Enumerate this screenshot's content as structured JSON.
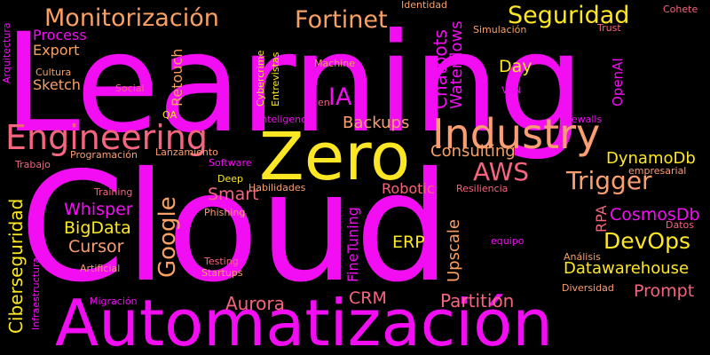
{
  "colors": {
    "background": "#000000",
    "magenta": "#f20df2",
    "pink": "#ff3fd5",
    "coral": "#f5657f",
    "orange": "#f9a062",
    "peach": "#fb9f72",
    "yellow": "#fde724"
  },
  "words": {
    "learning": "Learning",
    "cloud": "Cloud",
    "automatizacion": "Automatización",
    "zero": "Zero",
    "industry": "Industry",
    "engineering": "Engineering",
    "monitorizacion": "Monitorización",
    "fortinet": "Fortinet",
    "seguridad": "Seguridad",
    "aws": "AWS",
    "trigger": "Trigger",
    "devops": "DevOps",
    "datawarehouse": "Datawarehouse",
    "prompt": "Prompt",
    "partition": "Partition",
    "aurora": "Aurora",
    "crm": "CRM",
    "erp": "ERP",
    "google": "Google",
    "cursor": "Cursor",
    "bigdata": "BigData",
    "whisper": "Whisper",
    "smart": "Smart",
    "ia": "IA",
    "backups": "Backups",
    "consulting": "Consulting",
    "dynamodb": "DynamoDb",
    "cosmosdb": "CosmosDb",
    "robotic": "Robotic",
    "day": "Day",
    "process": "Process",
    "export": "Export",
    "sketch": "Sketch",
    "cultura": "Cultura",
    "social": "Social",
    "qa": "QA",
    "machine": "Machine",
    "en": "en",
    "identidad": "Identidad",
    "simulacion": "Simulación",
    "trust": "Trust",
    "cohete": "Cohete",
    "vpn": "VPN",
    "inteligencia": "Inteligencia",
    "firewalls": "Firewalls",
    "trabajo": "Trabajo",
    "programacion": "Programación",
    "lanzamiento": "Lanzamiento",
    "software": "Software",
    "deep": "Deep",
    "training": "Training",
    "habilidades": "Habilidades",
    "resiliencia": "Resiliencia",
    "empresarial": "empresarial",
    "phishing": "Phishing",
    "datos": "Datos",
    "equipo": "equipo",
    "analisis": "Análisis",
    "testing": "Testing",
    "startups": "Startups",
    "artificial": "Artificial",
    "diversidad": "Diversidad",
    "migracion": "Migración",
    "arquitectura": "Arquitectura",
    "ciberseguridad": "Ciberseguridad",
    "infraestructura": "Infraestructura",
    "retouch": "Retouch",
    "cybercrime": "Cybercrime",
    "entrevistas": "Entrevistas",
    "chatbots": "Chatbots",
    "waterflows": "Waterflows",
    "openai": "OpenAI",
    "finetuning": "FineTuning",
    "upscale": "Upscale",
    "rpa": "RPA"
  }
}
